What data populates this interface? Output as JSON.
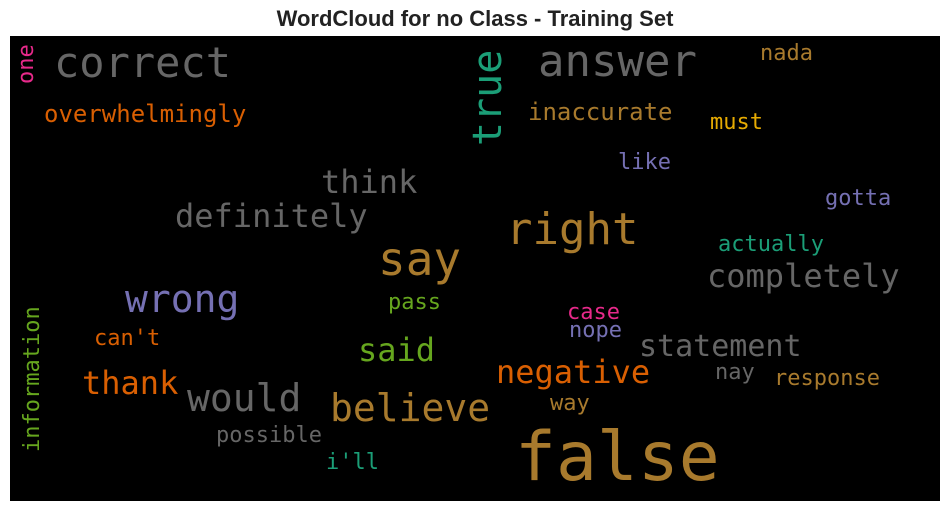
{
  "chart_data": {
    "type": "wordcloud",
    "title": "WordCloud for no Class - Training Set",
    "background": "#000000",
    "words": [
      {
        "text": "false",
        "size": 68,
        "color": "#a87a2d",
        "vertical": false
      },
      {
        "text": "say",
        "size": 46,
        "color": "#a87a2d",
        "vertical": false
      },
      {
        "text": "right",
        "size": 44,
        "color": "#a87a2d",
        "vertical": false
      },
      {
        "text": "answer",
        "size": 44,
        "color": "#666666",
        "vertical": false
      },
      {
        "text": "correct",
        "size": 42,
        "color": "#666666",
        "vertical": false
      },
      {
        "text": "true",
        "size": 40,
        "color": "#1b9e77",
        "vertical": true
      },
      {
        "text": "wrong",
        "size": 38,
        "color": "#7570b3",
        "vertical": false
      },
      {
        "text": "believe",
        "size": 38,
        "color": "#a87a2d",
        "vertical": false
      },
      {
        "text": "would",
        "size": 38,
        "color": "#666666",
        "vertical": false
      },
      {
        "text": "completely",
        "size": 32,
        "color": "#666666",
        "vertical": false
      },
      {
        "text": "definitely",
        "size": 32,
        "color": "#666666",
        "vertical": false
      },
      {
        "text": "think",
        "size": 32,
        "color": "#666666",
        "vertical": false
      },
      {
        "text": "thank",
        "size": 32,
        "color": "#d95f02",
        "vertical": false
      },
      {
        "text": "negative",
        "size": 32,
        "color": "#d95f02",
        "vertical": false
      },
      {
        "text": "statement",
        "size": 30,
        "color": "#666666",
        "vertical": false
      },
      {
        "text": "said",
        "size": 32,
        "color": "#66a61e",
        "vertical": false
      },
      {
        "text": "overwhelmingly",
        "size": 24,
        "color": "#d95f02",
        "vertical": false
      },
      {
        "text": "inaccurate",
        "size": 24,
        "color": "#a87a2d",
        "vertical": false
      },
      {
        "text": "information",
        "size": 22,
        "color": "#66a61e",
        "vertical": true
      },
      {
        "text": "actually",
        "size": 22,
        "color": "#1b9e77",
        "vertical": false
      },
      {
        "text": "response",
        "size": 22,
        "color": "#a87a2d",
        "vertical": false
      },
      {
        "text": "possible",
        "size": 22,
        "color": "#666666",
        "vertical": false
      },
      {
        "text": "must",
        "size": 22,
        "color": "#e6ab02",
        "vertical": false
      },
      {
        "text": "like",
        "size": 22,
        "color": "#7570b3",
        "vertical": false
      },
      {
        "text": "gotta",
        "size": 22,
        "color": "#7570b3",
        "vertical": false
      },
      {
        "text": "nada",
        "size": 22,
        "color": "#a87a2d",
        "vertical": false
      },
      {
        "text": "can't",
        "size": 22,
        "color": "#d95f02",
        "vertical": false
      },
      {
        "text": "pass",
        "size": 22,
        "color": "#66a61e",
        "vertical": false
      },
      {
        "text": "case",
        "size": 22,
        "color": "#e7298a",
        "vertical": false
      },
      {
        "text": "nope",
        "size": 22,
        "color": "#7570b3",
        "vertical": false
      },
      {
        "text": "nay",
        "size": 22,
        "color": "#666666",
        "vertical": false
      },
      {
        "text": "way",
        "size": 22,
        "color": "#a87a2d",
        "vertical": false
      },
      {
        "text": "i'll",
        "size": 22,
        "color": "#1b9e77",
        "vertical": false
      },
      {
        "text": "one",
        "size": 22,
        "color": "#e7298a",
        "vertical": true
      }
    ]
  }
}
